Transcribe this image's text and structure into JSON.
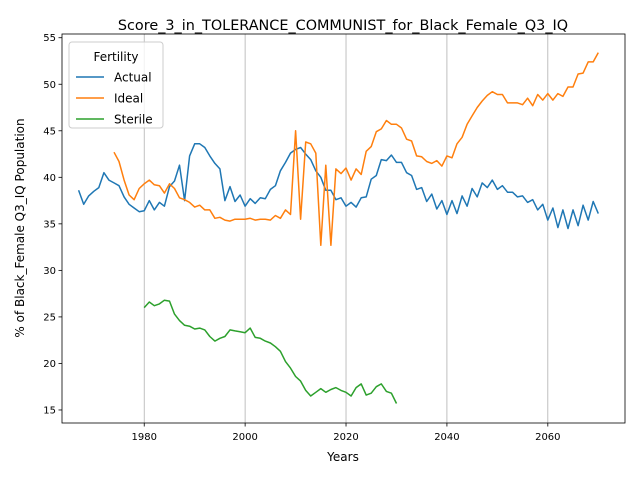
{
  "chart_data": {
    "type": "line",
    "title": "Score_3_in_TOLERANCE_COMMUNIST_for_Black_Female_Q3_IQ",
    "xlabel": "Years",
    "ylabel": "% of Black_Female Q3_IQ Population",
    "xlim": [
      1963.7,
      2075.3
    ],
    "ylim": [
      13.6,
      55.4
    ],
    "xticks": [
      1980,
      2000,
      2020,
      2040,
      2060
    ],
    "yticks": [
      15,
      20,
      25,
      30,
      35,
      40,
      45,
      50,
      55
    ],
    "grid": "vertical",
    "legend": {
      "title": "Fertility",
      "position": "top-left"
    },
    "series": [
      {
        "name": "Actual",
        "color": "#1f77b4",
        "x": [
          1967,
          1968,
          1969,
          1970,
          1971,
          1972,
          1973,
          1974,
          1975,
          1976,
          1977,
          1978,
          1979,
          1980,
          1981,
          1982,
          1983,
          1984,
          1985,
          1986,
          1987,
          1988,
          1989,
          1990,
          1991,
          1992,
          1993,
          1994,
          1995,
          1996,
          1997,
          1998,
          1999,
          2000,
          2001,
          2002,
          2003,
          2004,
          2005,
          2006,
          2007,
          2008,
          2009,
          2010,
          2011,
          2012,
          2013,
          2014,
          2015,
          2016,
          2017,
          2018,
          2019,
          2020,
          2021,
          2022,
          2023,
          2024,
          2025,
          2026,
          2027,
          2028,
          2029,
          2030,
          2031,
          2032,
          2033,
          2034,
          2035,
          2036,
          2037,
          2038,
          2039,
          2040,
          2041,
          2042,
          2043,
          2044,
          2045,
          2046,
          2047,
          2048,
          2049,
          2050,
          2051,
          2052,
          2053,
          2054,
          2055,
          2056,
          2057,
          2058,
          2059,
          2060,
          2061,
          2062,
          2063,
          2064,
          2065,
          2066,
          2067,
          2068,
          2069,
          2070
        ],
        "y": [
          38.6,
          37.1,
          38.0,
          38.5,
          38.9,
          40.5,
          39.7,
          39.4,
          39.1,
          37.9,
          37.1,
          36.7,
          36.3,
          36.4,
          37.5,
          36.5,
          37.3,
          36.9,
          39.0,
          39.6,
          41.3,
          37.5,
          42.3,
          43.6,
          43.6,
          43.2,
          42.3,
          41.5,
          40.9,
          37.5,
          39.0,
          37.4,
          38.1,
          36.9,
          37.7,
          37.2,
          37.8,
          37.7,
          38.7,
          39.1,
          40.7,
          41.6,
          42.6,
          43.0,
          43.2,
          42.5,
          41.9,
          40.7,
          40.0,
          38.6,
          38.6,
          37.6,
          37.8,
          36.9,
          37.3,
          36.8,
          37.8,
          37.9,
          39.8,
          40.2,
          41.9,
          41.8,
          42.4,
          41.6,
          41.6,
          40.5,
          40.2,
          38.7,
          38.9,
          37.4,
          38.2,
          36.6,
          37.5,
          36.0,
          37.5,
          36.1,
          38.0,
          36.9,
          38.8,
          37.9,
          39.4,
          38.9,
          39.7,
          38.7,
          39.1,
          38.4,
          38.4,
          37.9,
          38.0,
          37.3,
          37.6,
          36.5,
          37.1,
          35.4,
          36.7,
          34.6,
          36.5,
          34.5,
          36.5,
          34.8,
          37.0,
          35.4,
          37.4,
          36.1
        ]
      },
      {
        "name": "Ideal",
        "color": "#ff7f0e",
        "x": [
          1974,
          1975,
          1976,
          1977,
          1978,
          1979,
          1980,
          1981,
          1982,
          1983,
          1984,
          1985,
          1986,
          1987,
          1988,
          1989,
          1990,
          1991,
          1992,
          1993,
          1994,
          1995,
          1996,
          1997,
          1998,
          1999,
          2000,
          2001,
          2002,
          2003,
          2004,
          2005,
          2006,
          2007,
          2008,
          2009,
          2010,
          2011,
          2012,
          2013,
          2014,
          2015,
          2016,
          2017,
          2018,
          2019,
          2020,
          2021,
          2022,
          2023,
          2024,
          2025,
          2026,
          2027,
          2028,
          2029,
          2030,
          2031,
          2032,
          2033,
          2034,
          2035,
          2036,
          2037,
          2038,
          2039,
          2040,
          2041,
          2042,
          2043,
          2044,
          2045,
          2046,
          2047,
          2048,
          2049,
          2050,
          2051,
          2052,
          2053,
          2054,
          2055,
          2056,
          2057,
          2058,
          2059,
          2060,
          2061,
          2062,
          2063,
          2064,
          2065,
          2066,
          2067,
          2068,
          2069,
          2070
        ],
        "y": [
          42.7,
          41.7,
          39.7,
          38.1,
          37.6,
          38.8,
          39.3,
          39.7,
          39.2,
          39.1,
          38.3,
          39.3,
          38.8,
          37.8,
          37.6,
          37.3,
          36.8,
          37.0,
          36.5,
          36.5,
          35.6,
          35.7,
          35.4,
          35.3,
          35.5,
          35.5,
          35.5,
          35.6,
          35.4,
          35.5,
          35.5,
          35.4,
          35.9,
          35.6,
          36.5,
          36.0,
          45.0,
          35.5,
          43.8,
          43.6,
          42.6,
          32.7,
          41.3,
          32.7,
          40.9,
          40.4,
          41.0,
          39.7,
          40.9,
          40.3,
          42.8,
          43.3,
          44.9,
          45.2,
          46.1,
          45.7,
          45.7,
          45.3,
          44.1,
          43.9,
          42.3,
          42.2,
          41.7,
          41.5,
          41.8,
          41.2,
          42.3,
          42.1,
          43.6,
          44.3,
          45.7,
          46.6,
          47.5,
          48.2,
          48.8,
          49.2,
          48.9,
          48.9,
          48.0,
          48.0,
          48.0,
          47.8,
          48.5,
          47.7,
          48.9,
          48.3,
          49.0,
          48.3,
          49.0,
          48.7,
          49.7,
          49.7,
          51.1,
          51.2,
          52.4,
          52.4,
          53.4
        ]
      },
      {
        "name": "Sterile",
        "color": "#2ca02c",
        "x": [
          1980,
          1981,
          1982,
          1983,
          1984,
          1985,
          1986,
          1987,
          1988,
          1989,
          1990,
          1991,
          1992,
          1993,
          1994,
          1995,
          1996,
          1997,
          1998,
          1999,
          2000,
          2001,
          2002,
          2003,
          2004,
          2005,
          2006,
          2007,
          2008,
          2009,
          2010,
          2011,
          2012,
          2013,
          2014,
          2015,
          2016,
          2017,
          2018,
          2019,
          2020,
          2021,
          2022,
          2023,
          2024,
          2025,
          2026,
          2027,
          2028,
          2029,
          2030
        ],
        "y": [
          26.0,
          26.6,
          26.2,
          26.4,
          26.8,
          26.7,
          25.3,
          24.6,
          24.1,
          24.0,
          23.7,
          23.8,
          23.6,
          22.9,
          22.4,
          22.7,
          22.9,
          23.6,
          23.5,
          23.4,
          23.3,
          23.8,
          22.8,
          22.7,
          22.4,
          22.2,
          21.8,
          21.3,
          20.2,
          19.5,
          18.6,
          18.1,
          17.1,
          16.5,
          16.9,
          17.3,
          16.9,
          17.2,
          17.4,
          17.1,
          16.9,
          16.5,
          17.4,
          17.8,
          16.6,
          16.8,
          17.5,
          17.8,
          17.0,
          16.8,
          15.7
        ]
      }
    ]
  }
}
